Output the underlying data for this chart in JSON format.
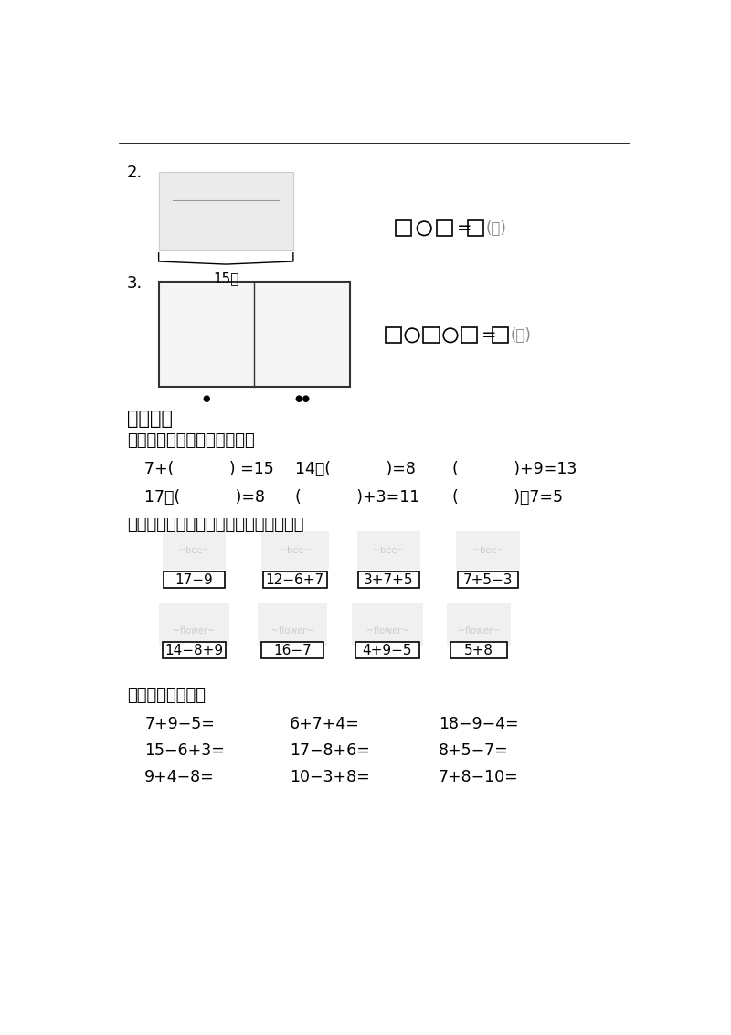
{
  "bg_color": "#ffffff",
  "section2_label": "2.",
  "section3_label": "3.",
  "chest_text": "15个",
  "section_title": "细心计算",
  "q4_label": "四、在括号里填上适当的数。",
  "q4_row1_a": "7+(           ) =15",
  "q4_row1_b": "14－(           )=8",
  "q4_row1_c": "(           )+9=13",
  "q4_row2_a": "17－(           )=8",
  "q4_row2_b": "(           )+3=11",
  "q4_row2_c": "(           )－7=5",
  "q5_label": "五、请你把得数相等的算式用线连起来。",
  "bee_labels": [
    "17−9",
    "12−6+7",
    "3+7+5",
    "7+5−3"
  ],
  "flower_labels": [
    "14−8+9",
    "16−7",
    "4+9−5",
    "5+8"
  ],
  "q6_label": "六、直接写得数。",
  "q6_row1": [
    "7+9−5=",
    "6+7+4=",
    "18−9−4="
  ],
  "q6_row2": [
    "15−6+3=",
    "17−8+6=",
    "8+5−7="
  ],
  "q6_row3": [
    "9+4−8=",
    "10−3+8=",
    "7+8−10="
  ]
}
